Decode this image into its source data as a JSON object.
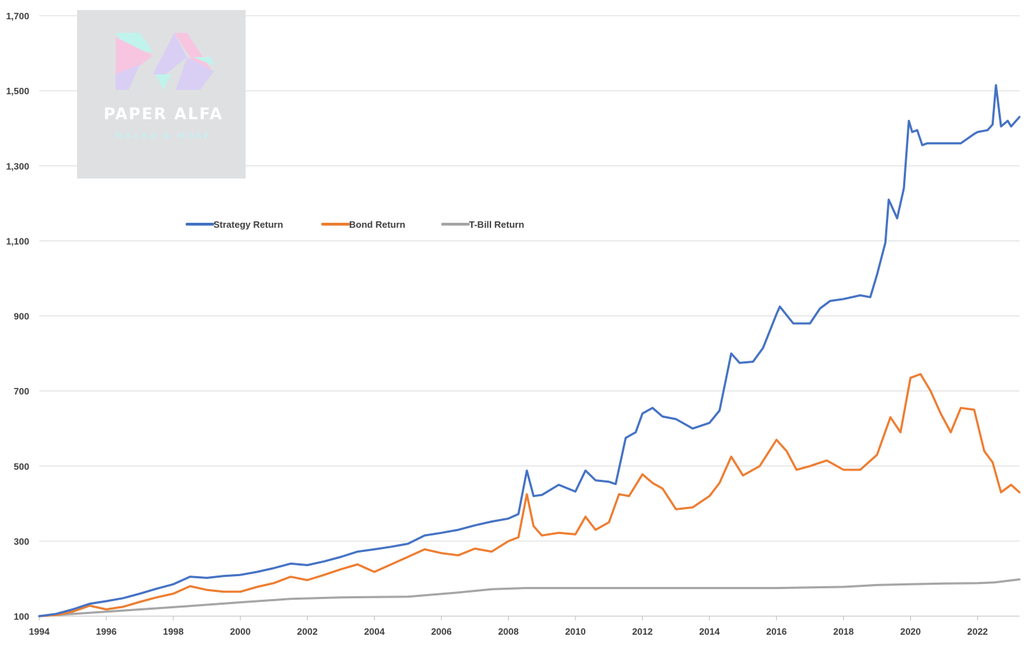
{
  "watermark": {
    "title": "PAPER ALFA",
    "subtitle": "MACRO & MORE",
    "colors": {
      "box": "#dfe0e2",
      "text": "#ffffff",
      "pink": "#f7c5e0",
      "mint": "#bff3ec",
      "lavender": "#d9cff5",
      "subtitle": "#c9eef0"
    }
  },
  "colors": {
    "strategy": "#4472c4",
    "bond": "#ed7d31",
    "tbill": "#a5a5a5",
    "grid": "#d9d9d9",
    "axis": "#bfbfbf"
  },
  "chart_data": {
    "type": "line",
    "title": "",
    "xlabel": "",
    "ylabel": "",
    "xlim": [
      1994,
      2023.25
    ],
    "ylim": [
      100,
      1700
    ],
    "grid": "horizontal",
    "legend": "upper-left-inside",
    "yticks": [
      100,
      300,
      500,
      700,
      900,
      1100,
      1300,
      1500,
      1700
    ],
    "ytick_labels": [
      "100",
      "300",
      "500",
      "700",
      "900",
      "1,100",
      "1,300",
      "1,500",
      "1,700"
    ],
    "xticks": [
      1994,
      1996,
      1998,
      2000,
      2002,
      2004,
      2006,
      2008,
      2010,
      2012,
      2014,
      2016,
      2018,
      2020,
      2022
    ],
    "xtick_labels": [
      "1994",
      "1996",
      "1998",
      "2000",
      "2002",
      "2004",
      "2006",
      "2008",
      "2010",
      "2012",
      "2014",
      "2016",
      "2018",
      "2020",
      "2022"
    ],
    "series": [
      {
        "name": "Strategy Return",
        "x": [
          1994.0,
          1994.5,
          1995.0,
          1995.5,
          1996.0,
          1996.5,
          1997.0,
          1997.5,
          1998.0,
          1998.5,
          1999.0,
          1999.5,
          2000.0,
          2000.5,
          2001.0,
          2001.5,
          2002.0,
          2002.5,
          2003.0,
          2003.5,
          2004.0,
          2004.5,
          2005.0,
          2005.5,
          2006.0,
          2006.5,
          2007.0,
          2007.5,
          2008.0,
          2008.3,
          2008.55,
          2008.75,
          2009.0,
          2009.5,
          2010.0,
          2010.3,
          2010.6,
          2011.0,
          2011.2,
          2011.5,
          2011.8,
          2012.0,
          2012.3,
          2012.6,
          2013.0,
          2013.5,
          2014.0,
          2014.3,
          2014.65,
          2014.9,
          2015.3,
          2015.6,
          2016.0,
          2016.1,
          2016.5,
          2017.0,
          2017.3,
          2017.6,
          2018.0,
          2018.5,
          2018.8,
          2019.0,
          2019.25,
          2019.35,
          2019.6,
          2019.8,
          2019.95,
          2020.05,
          2020.2,
          2020.35,
          2020.5,
          2021.0,
          2021.5,
          2021.9,
          2022.0,
          2022.3,
          2022.45,
          2022.55,
          2022.7,
          2022.9,
          2023.0,
          2023.25
        ],
        "values": [
          100,
          106,
          118,
          133,
          140,
          148,
          160,
          173,
          185,
          205,
          202,
          207,
          210,
          218,
          228,
          240,
          236,
          246,
          258,
          272,
          278,
          285,
          293,
          315,
          322,
          330,
          342,
          352,
          360,
          372,
          488,
          420,
          423,
          450,
          432,
          488,
          462,
          458,
          452,
          575,
          590,
          640,
          655,
          632,
          625,
          600,
          615,
          648,
          800,
          775,
          778,
          815,
          905,
          925,
          880,
          880,
          920,
          940,
          945,
          955,
          950,
          1010,
          1095,
          1210,
          1160,
          1240,
          1420,
          1390,
          1395,
          1355,
          1360,
          1360,
          1360,
          1385,
          1390,
          1395,
          1410,
          1515,
          1405,
          1420,
          1405,
          1430
        ]
      },
      {
        "name": "Bond Return",
        "x": [
          1994.0,
          1994.5,
          1995.0,
          1995.5,
          1996.0,
          1996.5,
          1997.0,
          1997.5,
          1998.0,
          1998.5,
          1999.0,
          1999.5,
          2000.0,
          2000.5,
          2001.0,
          2001.5,
          2002.0,
          2002.5,
          2003.0,
          2003.5,
          2004.0,
          2004.5,
          2005.0,
          2005.5,
          2006.0,
          2006.5,
          2007.0,
          2007.5,
          2008.0,
          2008.3,
          2008.55,
          2008.75,
          2009.0,
          2009.5,
          2010.0,
          2010.3,
          2010.6,
          2011.0,
          2011.3,
          2011.6,
          2012.0,
          2012.3,
          2012.6,
          2013.0,
          2013.5,
          2014.0,
          2014.3,
          2014.65,
          2015.0,
          2015.5,
          2016.0,
          2016.3,
          2016.6,
          2017.0,
          2017.5,
          2018.0,
          2018.5,
          2019.0,
          2019.4,
          2019.7,
          2020.0,
          2020.3,
          2020.6,
          2020.9,
          2021.2,
          2021.5,
          2021.9,
          2022.2,
          2022.45,
          2022.7,
          2023.0,
          2023.25
        ],
        "values": [
          100,
          103,
          112,
          128,
          118,
          125,
          138,
          150,
          160,
          180,
          170,
          165,
          165,
          178,
          188,
          205,
          196,
          210,
          225,
          238,
          218,
          238,
          258,
          278,
          268,
          262,
          280,
          272,
          300,
          310,
          425,
          340,
          315,
          322,
          318,
          365,
          330,
          350,
          425,
          420,
          478,
          455,
          440,
          385,
          390,
          420,
          455,
          525,
          475,
          500,
          570,
          540,
          490,
          500,
          515,
          490,
          490,
          530,
          630,
          590,
          735,
          745,
          700,
          640,
          590,
          655,
          650,
          540,
          510,
          430,
          450,
          430
        ]
      },
      {
        "name": "T-Bill Return",
        "x": [
          1994.0,
          1996.0,
          1998.0,
          2000.0,
          2001.5,
          2003.0,
          2005.0,
          2006.5,
          2007.5,
          2008.5,
          2010.0,
          2012.0,
          2014.0,
          2016.0,
          2018.0,
          2019.0,
          2020.0,
          2021.0,
          2022.0,
          2022.5,
          2023.25
        ],
        "values": [
          100,
          112,
          124,
          137,
          146,
          150,
          152,
          163,
          172,
          175,
          175,
          175,
          175,
          175,
          178,
          183,
          185,
          187,
          188,
          190,
          198
        ]
      }
    ]
  }
}
